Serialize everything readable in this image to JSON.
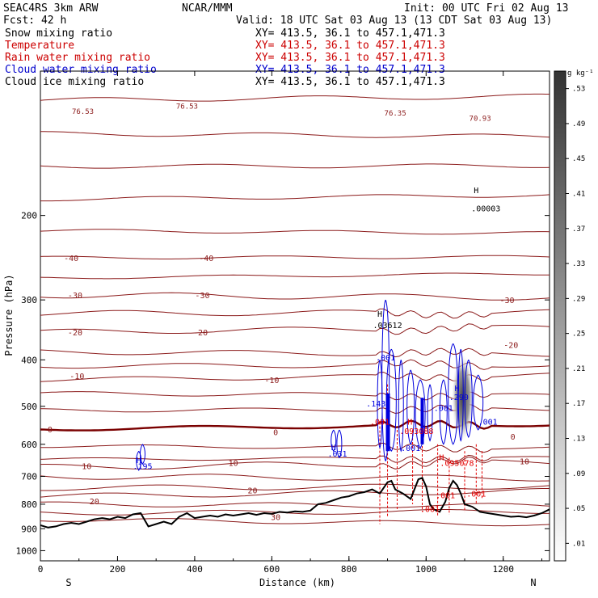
{
  "header": {
    "model": "SEAC4RS  3km ARW",
    "org": "NCAR/MMM",
    "init": "Init: 00 UTC Fri 02 Aug 13",
    "fcst": "Fcst:   42 h",
    "valid": "Valid: 18 UTC Sat 03 Aug 13 (13 CDT Sat 03 Aug 13)"
  },
  "fields": [
    {
      "name": "Snow mixing ratio",
      "xy": "XY= 413.5, 36.1 to 457.1,471.3",
      "color": "#000000"
    },
    {
      "name": "Temperature",
      "xy": "XY= 413.5, 36.1 to 457.1,471.3",
      "color": "#cc0000"
    },
    {
      "name": "Rain water mixing ratio",
      "xy": "XY= 413.5, 36.1 to 457.1,471.3",
      "color": "#cc0000"
    },
    {
      "name": "Cloud water mixing ratio",
      "xy": "XY= 413.5, 36.1 to 457.1,471.3",
      "color": "#0000cc"
    },
    {
      "name": "Cloud ice mixing ratio",
      "xy": "XY= 413.5, 36.1 to 457.1,471.3",
      "color": "#000000"
    }
  ],
  "colors": {
    "temperature": "#8b1a1a",
    "zero_isotherm": "#7a0000",
    "rain": "#e60000",
    "cloud_water": "#0000dd",
    "terrain": "#000000"
  },
  "chart_data": {
    "type": "cross-section contour",
    "xlabel": "Distance (km)",
    "ylabel": "Pressure (hPa)",
    "xlim": [
      0,
      1320
    ],
    "ylim": [
      1050,
      100
    ],
    "y_scale": "log",
    "x_ticks": [
      0,
      200,
      400,
      600,
      800,
      1000,
      1200
    ],
    "y_ticks": [
      200,
      300,
      400,
      500,
      600,
      700,
      800,
      900,
      1000
    ],
    "left_end": "S",
    "right_end": "N",
    "isotherm_labels": [
      {
        "text": "-40",
        "x": 80,
        "p": 245
      },
      {
        "text": "-40",
        "x": 430,
        "p": 245
      },
      {
        "text": "-30",
        "x": 90,
        "p": 293
      },
      {
        "text": "-30",
        "x": 420,
        "p": 293
      },
      {
        "text": "-30",
        "x": 1210,
        "p": 300
      },
      {
        "text": "-20",
        "x": 90,
        "p": 350
      },
      {
        "text": "-20",
        "x": 415,
        "p": 350
      },
      {
        "text": "-20",
        "x": 1220,
        "p": 372
      },
      {
        "text": "-10",
        "x": 95,
        "p": 432
      },
      {
        "text": "-10",
        "x": 600,
        "p": 440
      },
      {
        "text": "0",
        "x": 25,
        "p": 558
      },
      {
        "text": "0",
        "x": 610,
        "p": 565
      },
      {
        "text": "0",
        "x": 1225,
        "p": 578
      },
      {
        "text": "10",
        "x": 120,
        "p": 665
      },
      {
        "text": "10",
        "x": 500,
        "p": 655
      },
      {
        "text": "10",
        "x": 1255,
        "p": 650
      },
      {
        "text": "20",
        "x": 550,
        "p": 748
      },
      {
        "text": "20",
        "x": 140,
        "p": 788
      },
      {
        "text": "30",
        "x": 610,
        "p": 850
      }
    ],
    "snow_labels": [
      {
        "text": "H",
        "x": 1130,
        "p": 177
      },
      {
        "text": ".00003",
        "x": 1155,
        "p": 193
      },
      {
        "text": "H",
        "x": 880,
        "p": 320
      },
      {
        "text": ".03612",
        "x": 900,
        "p": 338
      }
    ],
    "cloud_water_labels": [
      {
        "text": "H",
        "x": 255,
        "p": 646
      },
      {
        "text": ".195",
        "x": 265,
        "p": 665
      },
      {
        "text": "H",
        "x": 760,
        "p": 608
      },
      {
        "text": ".031",
        "x": 770,
        "p": 627
      },
      {
        "text": ".001",
        "x": 895,
        "p": 395
      },
      {
        "text": ".143",
        "x": 870,
        "p": 493
      },
      {
        "text": ".001",
        "x": 1045,
        "p": 503
      },
      {
        "text": "H",
        "x": 1080,
        "p": 458
      },
      {
        "text": ".290",
        "x": 1085,
        "p": 478
      },
      {
        "text": ".001",
        "x": 1160,
        "p": 538
      },
      {
        "text": ".001",
        "x": 960,
        "p": 610
      }
    ],
    "rain_labels": [
      {
        "text": ".001",
        "x": 880,
        "p": 538
      },
      {
        "text": "H",
        "x": 958,
        "p": 538
      },
      {
        "text": ".093088",
        "x": 975,
        "p": 562
      },
      {
        "text": "H",
        "x": 1040,
        "p": 638
      },
      {
        "text": ".095078",
        "x": 1080,
        "p": 655
      },
      {
        "text": ".001",
        "x": 1050,
        "p": 765
      },
      {
        "text": ".001",
        "x": 1010,
        "p": 818
      },
      {
        "text": ".001",
        "x": 1130,
        "p": 760
      }
    ],
    "top_labels": [
      {
        "text": "76.53",
        "x": 110,
        "p": 121
      },
      {
        "text": "76.53",
        "x": 380,
        "p": 118
      },
      {
        "text": "76.35",
        "x": 920,
        "p": 122
      },
      {
        "text": "70.93",
        "x": 1140,
        "p": 125
      }
    ],
    "colorbar": {
      "unit": "g kg⁻¹",
      "levels": [
        ".01",
        ".05",
        ".09",
        ".13",
        ".17",
        ".21",
        ".25",
        ".29",
        ".33",
        ".37",
        ".41",
        ".45",
        ".49",
        ".53"
      ]
    }
  }
}
